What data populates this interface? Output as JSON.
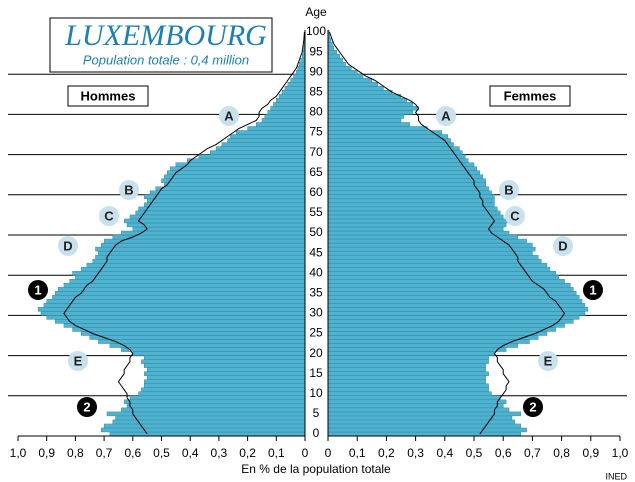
{
  "chart_data": {
    "type": "pyramid",
    "title": "LUXEMBOURG",
    "subtitle": "Population totale : 0,4 million",
    "y_label": "Age",
    "x_label": "En % de la population totale",
    "source": "INED",
    "ages": [
      0,
      1,
      2,
      3,
      4,
      5,
      6,
      7,
      8,
      9,
      10,
      11,
      12,
      13,
      14,
      15,
      16,
      17,
      18,
      19,
      20,
      21,
      22,
      23,
      24,
      25,
      26,
      27,
      28,
      29,
      30,
      31,
      32,
      33,
      34,
      35,
      36,
      37,
      38,
      39,
      40,
      41,
      42,
      43,
      44,
      45,
      46,
      47,
      48,
      49,
      50,
      51,
      52,
      53,
      54,
      55,
      56,
      57,
      58,
      59,
      60,
      61,
      62,
      63,
      64,
      65,
      66,
      67,
      68,
      69,
      70,
      71,
      72,
      73,
      74,
      75,
      76,
      77,
      78,
      79,
      80,
      81,
      82,
      83,
      84,
      85,
      86,
      87,
      88,
      89,
      90,
      91,
      92,
      93,
      94,
      95,
      96,
      97,
      98,
      99,
      100
    ],
    "series": [
      {
        "name": "Hommes",
        "color": "#4fb3d0",
        "values": [
          0.68,
          0.71,
          0.7,
          0.67,
          0.66,
          0.69,
          0.64,
          0.62,
          0.63,
          0.61,
          0.58,
          0.57,
          0.56,
          0.56,
          0.55,
          0.56,
          0.55,
          0.56,
          0.57,
          0.56,
          0.6,
          0.64,
          0.68,
          0.72,
          0.75,
          0.78,
          0.81,
          0.84,
          0.87,
          0.9,
          0.92,
          0.93,
          0.91,
          0.9,
          0.88,
          0.87,
          0.86,
          0.84,
          0.82,
          0.8,
          0.81,
          0.78,
          0.76,
          0.74,
          0.73,
          0.72,
          0.73,
          0.71,
          0.7,
          0.67,
          0.64,
          0.6,
          0.62,
          0.63,
          0.61,
          0.59,
          0.58,
          0.56,
          0.55,
          0.56,
          0.54,
          0.52,
          0.49,
          0.5,
          0.49,
          0.48,
          0.47,
          0.45,
          0.41,
          0.37,
          0.33,
          0.31,
          0.29,
          0.27,
          0.26,
          0.24,
          0.2,
          0.17,
          0.15,
          0.14,
          0.13,
          0.12,
          0.11,
          0.1,
          0.09,
          0.08,
          0.07,
          0.06,
          0.05,
          0.04,
          0.03,
          0.025,
          0.02,
          0.015,
          0.01,
          0.007,
          0.005,
          0.003,
          0.002,
          0.001,
          0.001
        ],
        "outline": [
          0.55,
          0.56,
          0.57,
          0.58,
          0.59,
          0.6,
          0.6,
          0.61,
          0.61,
          0.62,
          0.62,
          0.63,
          0.64,
          0.65,
          0.64,
          0.63,
          0.63,
          0.62,
          0.61,
          0.61,
          0.6,
          0.61,
          0.63,
          0.66,
          0.7,
          0.74,
          0.77,
          0.8,
          0.82,
          0.83,
          0.84,
          0.83,
          0.82,
          0.81,
          0.8,
          0.78,
          0.77,
          0.76,
          0.74,
          0.73,
          0.72,
          0.71,
          0.7,
          0.69,
          0.69,
          0.68,
          0.67,
          0.66,
          0.64,
          0.6,
          0.57,
          0.55,
          0.56,
          0.58,
          0.57,
          0.56,
          0.55,
          0.54,
          0.53,
          0.52,
          0.51,
          0.5,
          0.48,
          0.47,
          0.46,
          0.45,
          0.43,
          0.41,
          0.4,
          0.38,
          0.36,
          0.34,
          0.31,
          0.29,
          0.27,
          0.25,
          0.23,
          0.2,
          0.17,
          0.16,
          0.16,
          0.15,
          0.13,
          0.12,
          0.1,
          0.09,
          0.08,
          0.07,
          0.06,
          0.05,
          0.04,
          0.03,
          0.025,
          0.02,
          0.015,
          0.01,
          0.008,
          0.006,
          0.004,
          0.003,
          0.002
        ]
      },
      {
        "name": "Femmes",
        "color": "#4fb3d0",
        "values": [
          0.66,
          0.68,
          0.66,
          0.64,
          0.63,
          0.66,
          0.62,
          0.6,
          0.61,
          0.59,
          0.56,
          0.55,
          0.55,
          0.54,
          0.54,
          0.55,
          0.54,
          0.54,
          0.55,
          0.55,
          0.57,
          0.61,
          0.65,
          0.69,
          0.72,
          0.75,
          0.78,
          0.81,
          0.84,
          0.86,
          0.88,
          0.89,
          0.88,
          0.87,
          0.86,
          0.85,
          0.84,
          0.83,
          0.81,
          0.79,
          0.78,
          0.76,
          0.75,
          0.73,
          0.72,
          0.7,
          0.71,
          0.7,
          0.68,
          0.65,
          0.62,
          0.6,
          0.61,
          0.62,
          0.6,
          0.59,
          0.58,
          0.57,
          0.57,
          0.57,
          0.56,
          0.55,
          0.54,
          0.54,
          0.53,
          0.52,
          0.51,
          0.5,
          0.48,
          0.47,
          0.46,
          0.45,
          0.43,
          0.42,
          0.41,
          0.39,
          0.34,
          0.28,
          0.25,
          0.26,
          0.29,
          0.31,
          0.29,
          0.27,
          0.25,
          0.22,
          0.19,
          0.17,
          0.15,
          0.12,
          0.1,
          0.08,
          0.06,
          0.05,
          0.04,
          0.03,
          0.02,
          0.015,
          0.01,
          0.006,
          0.004
        ],
        "outline": [
          0.52,
          0.53,
          0.54,
          0.55,
          0.56,
          0.57,
          0.57,
          0.58,
          0.58,
          0.59,
          0.6,
          0.61,
          0.61,
          0.62,
          0.61,
          0.6,
          0.6,
          0.59,
          0.58,
          0.58,
          0.57,
          0.58,
          0.6,
          0.63,
          0.67,
          0.71,
          0.74,
          0.77,
          0.79,
          0.8,
          0.81,
          0.8,
          0.79,
          0.78,
          0.76,
          0.75,
          0.74,
          0.72,
          0.7,
          0.69,
          0.68,
          0.67,
          0.66,
          0.65,
          0.65,
          0.64,
          0.63,
          0.62,
          0.6,
          0.58,
          0.56,
          0.55,
          0.56,
          0.57,
          0.56,
          0.55,
          0.54,
          0.53,
          0.53,
          0.52,
          0.52,
          0.51,
          0.5,
          0.5,
          0.49,
          0.48,
          0.47,
          0.46,
          0.45,
          0.44,
          0.43,
          0.42,
          0.41,
          0.4,
          0.38,
          0.36,
          0.34,
          0.32,
          0.31,
          0.31,
          0.3,
          0.31,
          0.3,
          0.28,
          0.25,
          0.22,
          0.2,
          0.18,
          0.16,
          0.13,
          0.11,
          0.09,
          0.07,
          0.06,
          0.05,
          0.04,
          0.03,
          0.02,
          0.015,
          0.01,
          0.005
        ]
      }
    ],
    "outline_color": "#000000",
    "xlim": [
      0,
      1
    ],
    "xticks": [
      0,
      {
        "value": 0.1,
        "label": "0,1"
      },
      {
        "value": 0.2,
        "label": "0,2"
      },
      {
        "value": 0.3,
        "label": "0,3"
      },
      {
        "value": 0.4,
        "label": "0,4"
      },
      {
        "value": 0.5,
        "label": "0,5"
      },
      {
        "value": 0.6,
        "label": "0,6"
      },
      {
        "value": 0.7,
        "label": "0,7"
      },
      {
        "value": 0.8,
        "label": "0,8"
      },
      {
        "value": 0.9,
        "label": "0,9"
      },
      {
        "value": 1,
        "label": "1,0"
      }
    ],
    "ylim": [
      -0.5,
      100.5
    ],
    "yticks": [
      0,
      5,
      10,
      15,
      20,
      25,
      30,
      35,
      40,
      45,
      50,
      55,
      60,
      65,
      70,
      75,
      80,
      85,
      90,
      95,
      100
    ],
    "annotations": [
      "A",
      "B",
      "C",
      "D",
      "1",
      "E",
      "2"
    ]
  }
}
